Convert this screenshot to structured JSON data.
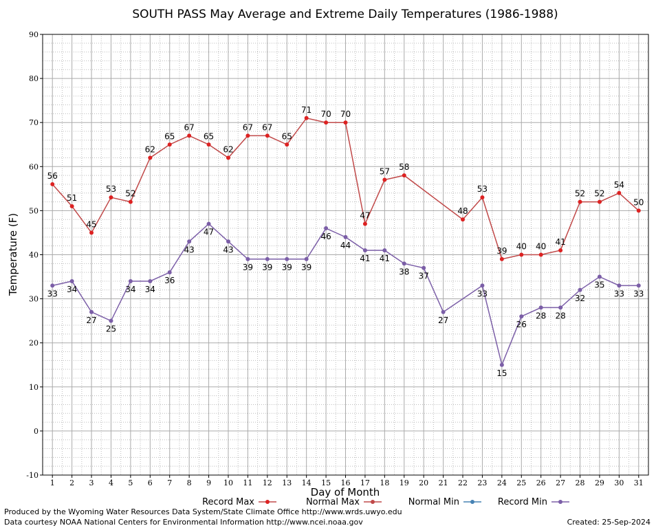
{
  "chart_data": {
    "type": "line",
    "title": "SOUTH PASS May Average and Extreme Daily Temperatures (1986-1988)",
    "x_label": "Day of Month",
    "y_label": "Temperature (F)",
    "xlim": [
      0.5,
      31.5
    ],
    "xticks": [
      1,
      2,
      3,
      4,
      5,
      6,
      7,
      8,
      9,
      10,
      11,
      12,
      13,
      14,
      15,
      16,
      17,
      18,
      19,
      20,
      21,
      22,
      23,
      24,
      25,
      26,
      27,
      28,
      29,
      30,
      31
    ],
    "ylim": [
      -10,
      90
    ],
    "yticks": [
      -10,
      0,
      10,
      20,
      30,
      40,
      50,
      60,
      70,
      80,
      90
    ],
    "grid": true,
    "series": [
      {
        "name": "Record Max",
        "color": "#c04848",
        "marker_color": "#dd2222",
        "label_position": "above",
        "x": [
          1,
          2,
          3,
          4,
          5,
          6,
          7,
          8,
          9,
          10,
          11,
          12,
          13,
          14,
          15,
          16,
          17,
          18,
          19,
          22,
          23,
          24,
          25,
          26,
          27,
          28,
          29,
          30,
          31
        ],
        "values": [
          56,
          51,
          45,
          53,
          52,
          62,
          65,
          67,
          65,
          62,
          67,
          67,
          65,
          71,
          70,
          70,
          47,
          57,
          58,
          48,
          53,
          39,
          40,
          40,
          41,
          52,
          52,
          54,
          50
        ]
      },
      {
        "name": "Normal Max",
        "color": "#c04848",
        "marker_color": "#c04848",
        "label_position": "above",
        "x": [],
        "values": []
      },
      {
        "name": "Normal Min",
        "color": "#4682b4",
        "marker_color": "#4682b4",
        "label_position": "below",
        "x": [],
        "values": []
      },
      {
        "name": "Record Min",
        "color": "#7b5ea7",
        "marker_color": "#7b5ea7",
        "label_position": "below",
        "x": [
          1,
          2,
          3,
          4,
          5,
          6,
          7,
          8,
          9,
          10,
          11,
          12,
          13,
          14,
          15,
          16,
          17,
          18,
          19,
          20,
          21,
          23,
          24,
          25,
          26,
          27,
          28,
          29,
          30,
          31
        ],
        "values": [
          33,
          34,
          27,
          25,
          34,
          34,
          36,
          43,
          47,
          43,
          39,
          39,
          39,
          39,
          46,
          44,
          41,
          41,
          38,
          37,
          27,
          33,
          15,
          26,
          28,
          28,
          32,
          35,
          33,
          33
        ]
      }
    ]
  },
  "footer": {
    "left1": "Produced by the Wyoming Water Resources Data System/State Climate Office http://www.wrds.uwyo.edu",
    "left2": "Data courtesy NOAA National Centers for Environmental Information http://www.ncei.noaa.gov",
    "right": "Created:  25-Sep-2024"
  }
}
